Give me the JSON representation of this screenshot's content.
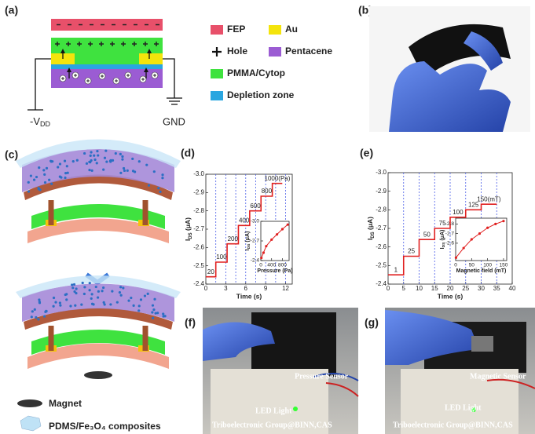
{
  "panel_labels": [
    "(a)",
    "(b)",
    "(c)",
    "(d)",
    "(e)",
    "(f)",
    "(g)"
  ],
  "schematic": {
    "source": {
      "main": "-V",
      "sub": "DD"
    },
    "ground": "GND"
  },
  "legend": [
    {
      "label": "FEP",
      "color": "#e8506a"
    },
    {
      "label": "Au",
      "color": "#f4e40c"
    },
    {
      "label": "Hole"
    },
    {
      "label": "Pentacene",
      "color": "#9b5cd3"
    },
    {
      "label": "PMMA/Cytop",
      "color": "#3fe23f"
    },
    {
      "label": "Depletion zone",
      "color": "#2aa6e0"
    }
  ],
  "device_legend": [
    "Magnet",
    "PDMS/Fe₃O₄ composites"
  ],
  "photo_f": {
    "sensor": "Pressure Sensor",
    "led": "LED Light",
    "credit": "Triboelectronic Group@BINN,CAS"
  },
  "photo_g": {
    "sensor": "Magnetic Sensor",
    "led": "LED Light",
    "credit": "Triboelectronic Group@BINN,CAS"
  },
  "chart_data": [
    {
      "type": "line",
      "xlabel": "Time (s)",
      "ylabel": {
        "main": "I",
        "sub": "DS",
        "unit": " (μA)"
      },
      "xlim": [
        0,
        13
      ],
      "xticks": [
        0,
        3,
        6,
        9,
        12
      ],
      "ylim": [
        -2.4,
        -3.0
      ],
      "yticks": [
        {
          "value": -3.0,
          "label": "-3.0"
        },
        -2.9,
        -2.8,
        -2.7,
        -2.6,
        -2.5,
        -2.4
      ],
      "vlines": [
        1.5,
        3,
        4.5,
        6,
        7.5,
        9,
        10.5,
        12
      ],
      "series": [
        {
          "color": "#e02020",
          "x": [
            0,
            1.5,
            1.5,
            3.2,
            3.2,
            4.9,
            4.9,
            6.6,
            6.6,
            8.3,
            8.3,
            10,
            10,
            11.5
          ],
          "values": [
            -2.44,
            -2.44,
            -2.52,
            -2.52,
            -2.62,
            -2.62,
            -2.72,
            -2.72,
            -2.8,
            -2.8,
            -2.88,
            -2.88,
            -2.95,
            -2.95
          ]
        }
      ],
      "annotations": [
        "20",
        "100",
        "200",
        "400",
        "600",
        "800",
        "1000(Pa)"
      ]
    },
    {
      "type": "line",
      "markers": true,
      "xlabel": "Pressure (Pa)",
      "ylabel": {
        "main": "I",
        "sub": "DS",
        "unit": " (μA)"
      },
      "xlim": [
        0,
        1050
      ],
      "xticks": [
        0,
        400,
        800
      ],
      "ylim": [
        -2.4,
        -3.0
      ],
      "yticks": [
        {
          "value": -3.0,
          "label": "-3.0"
        },
        -2.7,
        -2.4
      ],
      "series": [
        {
          "color": "#e02020",
          "x": [
            20,
            100,
            200,
            400,
            600,
            800,
            1000
          ],
          "values": [
            -2.44,
            -2.52,
            -2.62,
            -2.72,
            -2.8,
            -2.88,
            -2.95
          ]
        }
      ]
    },
    {
      "type": "line",
      "xlabel": "Time (s)",
      "ylabel": {
        "main": "I",
        "sub": "DS",
        "unit": " (μA)"
      },
      "xlim": [
        0,
        40
      ],
      "xticks": [
        0,
        5,
        10,
        15,
        20,
        25,
        30,
        35,
        40
      ],
      "ylim": [
        -2.4,
        -3.0
      ],
      "yticks": [
        {
          "value": -3.0,
          "label": "-3.0"
        },
        -2.9,
        -2.8,
        -2.7,
        -2.6,
        -2.5,
        -2.4
      ],
      "vlines": [
        5,
        10,
        15,
        20,
        25,
        30,
        35
      ],
      "series": [
        {
          "color": "#e02020",
          "x": [
            0,
            5,
            5,
            10,
            10,
            15,
            15,
            20,
            20,
            25,
            25,
            30,
            30,
            35
          ],
          "values": [
            -2.45,
            -2.45,
            -2.55,
            -2.55,
            -2.64,
            -2.64,
            -2.7,
            -2.7,
            -2.76,
            -2.76,
            -2.8,
            -2.8,
            -2.83,
            -2.83
          ]
        }
      ],
      "annotations": [
        "1",
        "25",
        "50",
        "75",
        "100",
        "125",
        "150(mT)"
      ]
    },
    {
      "type": "line",
      "markers": true,
      "xlabel": "Magnetic field (mT)",
      "ylabel": {
        "main": "I",
        "sub": "DS",
        "unit": " (μA)"
      },
      "xlim": [
        0,
        160
      ],
      "xticks": [
        0,
        50,
        100,
        150
      ],
      "ylim": [
        -2.42,
        -2.86
      ],
      "yticks": [
        -2.8,
        -2.7,
        -2.6
      ],
      "series": [
        {
          "color": "#e02020",
          "x": [
            1,
            25,
            50,
            75,
            100,
            125,
            150
          ],
          "values": [
            -2.45,
            -2.55,
            -2.64,
            -2.7,
            -2.76,
            -2.8,
            -2.83
          ]
        }
      ]
    }
  ]
}
